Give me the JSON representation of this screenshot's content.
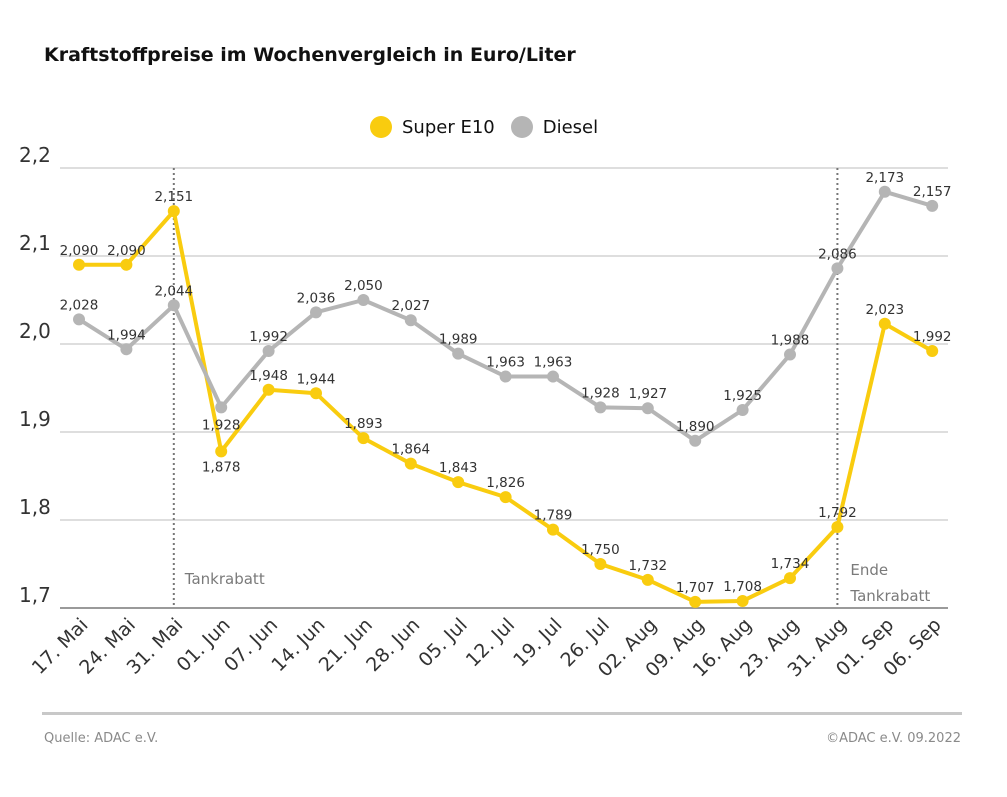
{
  "title": "Kraftstoffpreise im Wochenvergleich in Euro/Liter",
  "colors": {
    "super": "#f9cc0f",
    "diesel": "#b5b5b5",
    "grid": "#d4d4d4",
    "axis_text": "#333333"
  },
  "chart_data": {
    "type": "line",
    "title": "Kraftstoffpreise im Wochenvergleich in Euro/Liter",
    "xlabel": "",
    "ylabel": "",
    "ylim": [
      1.7,
      2.2
    ],
    "yticks": [
      "1,7",
      "1,8",
      "1,9",
      "2,0",
      "2,1",
      "2,2"
    ],
    "grid": true,
    "legend_position": "top-center",
    "categories": [
      "17. Mai",
      "24. Mai",
      "31. Mai",
      "01. Jun",
      "07. Jun",
      "14. Jun",
      "21. Jun",
      "28. Jun",
      "05. Jul",
      "12. Jul",
      "19. Jul",
      "26. Jul",
      "02. Aug",
      "09. Aug",
      "16. Aug",
      "23. Aug",
      "31. Aug",
      "01. Sep",
      "06. Sep"
    ],
    "series": [
      {
        "name": "Super E10",
        "values": [
          2.09,
          2.09,
          2.151,
          1.878,
          1.948,
          1.944,
          1.893,
          1.864,
          1.843,
          1.826,
          1.789,
          1.75,
          1.732,
          1.707,
          1.708,
          1.734,
          1.792,
          2.023,
          1.992
        ],
        "labels": [
          "2,090",
          "2,090",
          "2,151",
          "1,878",
          "1,948",
          "1,944",
          "1,893",
          "1,864",
          "1,843",
          "1,826",
          "1,789",
          "1,750",
          "1,732",
          "1,707",
          "1,708",
          "1,734",
          "1,792",
          "2,023",
          "1,992"
        ]
      },
      {
        "name": "Diesel",
        "values": [
          2.028,
          1.994,
          2.044,
          1.928,
          1.992,
          2.036,
          2.05,
          2.027,
          1.989,
          1.963,
          1.963,
          1.928,
          1.927,
          1.89,
          1.925,
          1.988,
          2.086,
          2.173,
          2.157
        ],
        "labels": [
          "2,028",
          "1,994",
          "2,044",
          "1,928",
          "1,992",
          "2,036",
          "2,050",
          "2,027",
          "1,989",
          "1,963",
          "1,963",
          "1,928",
          "1,927",
          "1,890",
          "1,925",
          "1,988",
          "2,086",
          "2,173",
          "2,157"
        ]
      }
    ],
    "annotations": [
      {
        "text": "Tankrabatt",
        "x_index": 2
      },
      {
        "text": "Ende Tankrabatt",
        "x_index": 16
      }
    ]
  },
  "footer": {
    "source": "Quelle: ADAC e.V.",
    "copyright": "©ADAC e.V.  09.2022"
  }
}
